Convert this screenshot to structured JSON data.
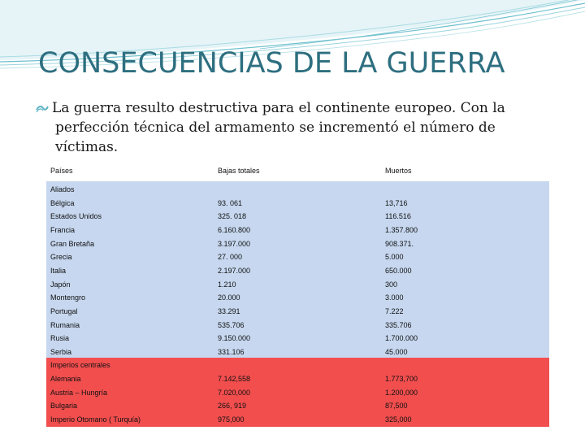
{
  "slide": {
    "title": "CONSECUENCIAS DE LA GUERRA",
    "bullet_first": "La guerra resulto destructiva para el continente europeo. Con la",
    "bullet_rest": "perfección técnica del armamento se incrementó el número de víctimas.",
    "bullet_icon": "wave-bullet-icon"
  },
  "table": {
    "headers": [
      "Países",
      "Bajas totales",
      "Muertos"
    ],
    "rows": [
      [
        "Aliados",
        "",
        ""
      ],
      [
        "Bélgica",
        "93. 061",
        "13,716"
      ],
      [
        "Estados Unidos",
        "325. 018",
        "116.516"
      ],
      [
        "Francia",
        "6.160.800",
        "1.357.800"
      ],
      [
        "Gran Bretaña",
        "3.197.000",
        "908.371."
      ],
      [
        "Grecia",
        "27. 000",
        "5.000"
      ],
      [
        "Italia",
        "2.197.000",
        "650.000"
      ],
      [
        "Japón",
        "1.210",
        "300"
      ],
      [
        "Montengro",
        "20.000",
        "3.000"
      ],
      [
        "Portugal",
        "33.291",
        "7.222"
      ],
      [
        "Rumania",
        "535.706",
        "335.706"
      ],
      [
        "Rusia",
        "9.150.000",
        "1.700.000"
      ],
      [
        "Serbia",
        "331.106",
        "45.000"
      ],
      [
        "Imperios centrales",
        "",
        ""
      ],
      [
        "Alemania",
        "7.142,558",
        "1.773,700"
      ],
      [
        "Austria – Hungría",
        "7.020,000",
        "1.200,000"
      ],
      [
        "Bulgaria",
        "266, 919",
        "87,500"
      ],
      [
        "Imperio Otomano ( Turquía)",
        "975,000",
        "325,000"
      ]
    ]
  },
  "colors": {
    "title": "#2e6f80",
    "blue_band": "#c6d7ef",
    "red_band": "#f24e4e",
    "wave": "#5cb3c4"
  }
}
